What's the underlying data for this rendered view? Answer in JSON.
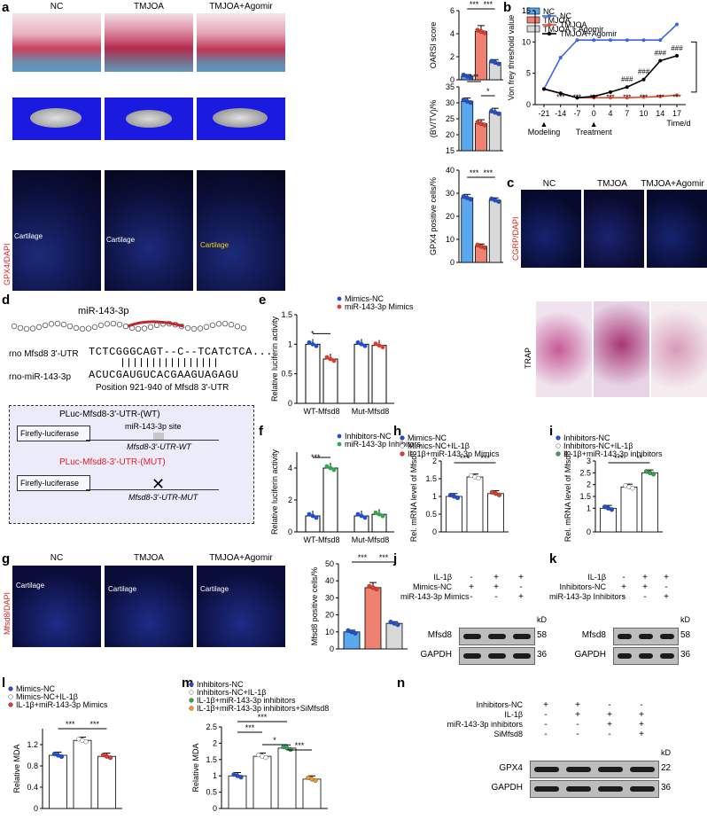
{
  "panels": {
    "a": "a",
    "b": "b",
    "c": "c",
    "d": "d",
    "e": "e",
    "f": "f",
    "g": "g",
    "h": "h",
    "i": "i",
    "j": "j",
    "k": "k",
    "l": "l",
    "m": "m",
    "n": "n"
  },
  "groups": {
    "nc": "NC",
    "tmjoa": "TMJOA",
    "agomir": "TMJOA+Agomir"
  },
  "colors": {
    "nc": "#5aa7ef",
    "tmjoa": "#f08070",
    "agomir": "#d9d9d9",
    "blue_dot": "#1f4fd6",
    "red_dot": "#e53b2a",
    "green_dot": "#2ea84a",
    "orange_dot": "#f29a2e"
  },
  "labels": {
    "gpx4_dapi": "GPX4/DAPI",
    "cgrp_dapi": "CGRP/DAPI",
    "mfsd8_dapi": "Mfsd8/DAPI",
    "trap": "TRAP",
    "cartilage": "Cartilage",
    "mir": "miR-143-3p",
    "utr_row": "rno Mfsd8 3'-UTR",
    "utr_seq": "TCTCGGGCAGT--C--TCATCTCA...",
    "mir_row": "rno-miR-143-3p",
    "mir_seq": "ACUCGAUGUCACGAAGUAGAGU",
    "position": "Position 921-940 of Mfsd8 3'-UTR",
    "pluc_wt": "PLuc-Mfsd8-3'-UTR-(WT)",
    "pluc_mut": "PLuc-Mfsd8-3'-UTR-(MUT)",
    "firefly": "Firefly-luciferase",
    "site": "miR-143-3p site",
    "utr_wt": "Mfsd8-3'-UTR-WT",
    "utr_mut": "Mfsd8-3'-UTR-MUT",
    "kd": "kD"
  },
  "chart_data": [
    {
      "id": "a1",
      "type": "bar",
      "ylabel": "OARSI score",
      "categories": [
        "NC",
        "TMJOA",
        "TMJOA + Agomir"
      ],
      "values": [
        0.3,
        4.2,
        1.5
      ],
      "errors": [
        0.15,
        0.5,
        0.25
      ],
      "ylim": [
        0,
        6
      ],
      "yticks": [
        0,
        2,
        4,
        6
      ],
      "sig": [
        "***",
        "***"
      ],
      "legend": [
        "NC",
        "TMJOA",
        "TMJOA + Agomir"
      ]
    },
    {
      "id": "a2",
      "type": "bar",
      "ylabel": "(BV/TV)/%",
      "categories": [
        "NC",
        "TMJOA",
        "TMJOA + Agomir"
      ],
      "values": [
        30.5,
        23.5,
        27
      ],
      "errors": [
        1,
        1.2,
        1.3
      ],
      "ylim": [
        15,
        35
      ],
      "yticks": [
        15,
        20,
        25,
        30,
        35
      ],
      "sig": [
        "***",
        "*"
      ]
    },
    {
      "id": "a3",
      "type": "bar",
      "ylabel": "GPX4 positive cells/%",
      "categories": [
        "NC",
        "TMJOA",
        "TMJOA + Agomir"
      ],
      "values": [
        28,
        7,
        27
      ],
      "errors": [
        1.5,
        1,
        1
      ],
      "ylim": [
        0,
        40
      ],
      "yticks": [
        0,
        10,
        20,
        30,
        40
      ],
      "sig": [
        "***",
        "***"
      ]
    },
    {
      "id": "b",
      "type": "line",
      "ylabel": "Von frey threshold value",
      "xlabel": "Time/d",
      "x": [
        -21,
        -14,
        -7,
        0,
        4,
        7,
        10,
        14,
        17
      ],
      "ylim": [
        0,
        15
      ],
      "yticks": [
        0,
        5,
        10,
        15
      ],
      "series": [
        {
          "name": "NC",
          "values": [
            2.5,
            7.5,
            10.3,
            10.3,
            10.3,
            10.3,
            10.3,
            10.3,
            12.8
          ]
        },
        {
          "name": "TMJOA",
          "values": [
            2.5,
            1.8,
            1.1,
            1.1,
            1.1,
            1.1,
            1.2,
            1.3,
            1.5
          ]
        },
        {
          "name": "TMJOA+Agomir",
          "values": [
            2.5,
            1.8,
            1.1,
            1.3,
            2,
            2.8,
            4,
            7,
            7.8
          ]
        }
      ],
      "annotations": [
        "Modeling",
        "Treatment",
        "***",
        "###",
        "###",
        "###",
        "###",
        "###"
      ]
    },
    {
      "id": "e",
      "type": "bar",
      "ylabel": "Relative luciferin activity",
      "categories": [
        "WT-Mfsd8",
        "Mut-Mfsd8"
      ],
      "series": [
        {
          "name": "Mimics-NC",
          "values": [
            1.0,
            1.0
          ]
        },
        {
          "name": "miR-143-3p Mimics",
          "values": [
            0.75,
            0.98
          ]
        }
      ],
      "ylim": [
        0,
        1.5
      ],
      "yticks": [
        0,
        0.5,
        1.0,
        1.5
      ],
      "sig": [
        "*"
      ]
    },
    {
      "id": "f",
      "type": "bar",
      "ylabel": "Relative luciferin activity",
      "categories": [
        "WT-Mfsd8",
        "Mut-Mfsd8"
      ],
      "series": [
        {
          "name": "Inhibitors-NC",
          "values": [
            1.0,
            1.0
          ]
        },
        {
          "name": "miR-143-3p Inhibitors",
          "values": [
            4.0,
            1.1
          ]
        }
      ],
      "ylim": [
        0,
        5
      ],
      "yticks": [
        0,
        2,
        4
      ],
      "sig": [
        "***"
      ]
    },
    {
      "id": "g",
      "type": "bar",
      "ylabel": "Mfsd8 positive cells/%",
      "categories": [
        "NC",
        "TMJOA",
        "TMJOA+Agomir"
      ],
      "values": [
        10,
        36,
        15
      ],
      "errors": [
        1,
        3,
        1
      ],
      "ylim": [
        0,
        50
      ],
      "yticks": [
        0,
        10,
        20,
        30,
        40,
        50
      ],
      "sig": [
        "***",
        "***"
      ]
    },
    {
      "id": "h",
      "type": "bar",
      "ylabel": "Rel. mRNA level of Mfsd8",
      "categories": [
        "Mimics-NC",
        "Mimics-NC+IL-1β",
        "IL-1β+miR-143-3p Mimics"
      ],
      "values": [
        1.0,
        1.55,
        1.08
      ],
      "ylim": [
        0,
        2
      ],
      "yticks": [
        0,
        0.5,
        1.0,
        1.5,
        2.0
      ],
      "sig": [
        "***",
        "***"
      ]
    },
    {
      "id": "i",
      "type": "bar",
      "ylabel": "Rel. mRNA level of Mfsd8",
      "categories": [
        "Inhibitors-NC",
        "Inhibitors-NC+IL-1β",
        "IL-1β+miR-143-3p inhibitors"
      ],
      "values": [
        1.0,
        1.9,
        2.5
      ],
      "ylim": [
        0,
        3
      ],
      "yticks": [
        0,
        1.0,
        1.5,
        2.0,
        2.5,
        3.0
      ],
      "sig": [
        "***",
        "**"
      ]
    },
    {
      "id": "l",
      "type": "bar",
      "ylabel": "Relative MDA",
      "categories": [
        "Mimics-NC",
        "Mimics-NC+IL-1β",
        "IL-1β+miR-143-3p Mimics"
      ],
      "values": [
        1.0,
        1.28,
        0.98
      ],
      "ylim": [
        0,
        1.5
      ],
      "yticks": [
        0,
        0.4,
        0.8,
        1.2
      ],
      "sig": [
        "***",
        "***"
      ]
    },
    {
      "id": "m",
      "type": "bar",
      "ylabel": "Relative MDA",
      "categories": [
        "Inhibitors-NC",
        "Inhibitors-NC+IL-1β",
        "IL-1β+miR-143-3p inhibitors",
        "IL-1β+miR-143-3p inhibitors+SiMfsd8"
      ],
      "values": [
        1.0,
        1.6,
        1.85,
        0.9
      ],
      "ylim": [
        0,
        2.5
      ],
      "yticks": [
        0,
        0.5,
        1.0,
        1.5,
        2.0,
        2.5
      ],
      "sig": [
        "***",
        "***",
        "*",
        "***"
      ]
    }
  ],
  "blots": {
    "j": {
      "rows": [
        {
          "label": "IL-1β",
          "cols": [
            "-",
            "+",
            "+"
          ]
        },
        {
          "label": "Mimics-NC",
          "cols": [
            "+",
            "+",
            "-"
          ]
        },
        {
          "label": "miR-143-3p Mimics",
          "cols": [
            "-",
            "-",
            "+"
          ]
        }
      ],
      "bands": [
        {
          "name": "Mfsd8",
          "kd": "58"
        },
        {
          "name": "GAPDH",
          "kd": "36"
        }
      ]
    },
    "k": {
      "rows": [
        {
          "label": "IL-1β",
          "cols": [
            "-",
            "+",
            "+"
          ]
        },
        {
          "label": "Inhibitors-NC",
          "cols": [
            "+",
            "+",
            "-"
          ]
        },
        {
          "label": "miR-143-3p Inhibitors",
          "cols": [
            "-",
            "-",
            "+"
          ]
        }
      ],
      "bands": [
        {
          "name": "Mfsd8",
          "kd": "58"
        },
        {
          "name": "GAPDH",
          "kd": "36"
        }
      ]
    },
    "n": {
      "rows": [
        {
          "label": "Inhibitors-NC",
          "cols": [
            "+",
            "+",
            "-",
            "-"
          ]
        },
        {
          "label": "IL-1β",
          "cols": [
            "-",
            "+",
            "+",
            "+"
          ]
        },
        {
          "label": "miR-143-3p inhibitors",
          "cols": [
            "-",
            "-",
            "+",
            "+"
          ]
        },
        {
          "label": "SiMfsd8",
          "cols": [
            "-",
            "-",
            "-",
            "+"
          ]
        }
      ],
      "bands": [
        {
          "name": "GPX4",
          "kd": "22"
        },
        {
          "name": "GAPDH",
          "kd": "36"
        }
      ]
    }
  }
}
